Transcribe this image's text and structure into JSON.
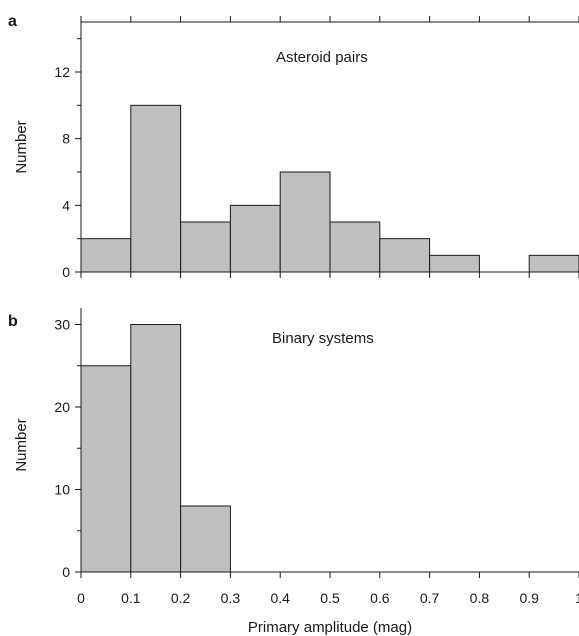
{
  "figure": {
    "xlabel": "Primary amplitude (mag)",
    "x_tick_labels": [
      "0",
      "0.1",
      "0.2",
      "0.3",
      "0.4",
      "0.5",
      "0.6",
      "0.7",
      "0.8",
      "0.9",
      "1"
    ],
    "bar_color": "#c0c0c0",
    "line_color": "#1a1a1a"
  },
  "chart_data": [
    {
      "type": "bar",
      "panel_label": "a",
      "annotation": "Asteroid pairs",
      "xlabel": "",
      "ylabel": "Number",
      "xlim": [
        0,
        1
      ],
      "ylim": [
        0,
        15
      ],
      "y_ticks": [
        0,
        4,
        8,
        12
      ],
      "y_minor_ticks": [
        2,
        6,
        10,
        14
      ],
      "x_ticks_top": true,
      "bin_width": 0.1,
      "bin_starts": [
        0,
        0.1,
        0.2,
        0.3,
        0.4,
        0.5,
        0.6,
        0.7,
        0.8,
        0.9
      ],
      "values": [
        2,
        10,
        3,
        4,
        6,
        3,
        2,
        1,
        0,
        1
      ]
    },
    {
      "type": "bar",
      "panel_label": "b",
      "annotation": "Binary systems",
      "xlabel": "Primary amplitude (mag)",
      "ylabel": "Number",
      "xlim": [
        0,
        1
      ],
      "ylim": [
        0,
        32
      ],
      "y_ticks": [
        0,
        10,
        20,
        30
      ],
      "y_minor_ticks": [
        5,
        15,
        25
      ],
      "x_ticks_top": false,
      "bin_width": 0.1,
      "bin_starts": [
        0,
        0.1,
        0.2,
        0.3,
        0.4,
        0.5,
        0.6,
        0.7,
        0.8,
        0.9
      ],
      "values": [
        25,
        30,
        8,
        0,
        0,
        0,
        0,
        0,
        0,
        0
      ]
    }
  ]
}
